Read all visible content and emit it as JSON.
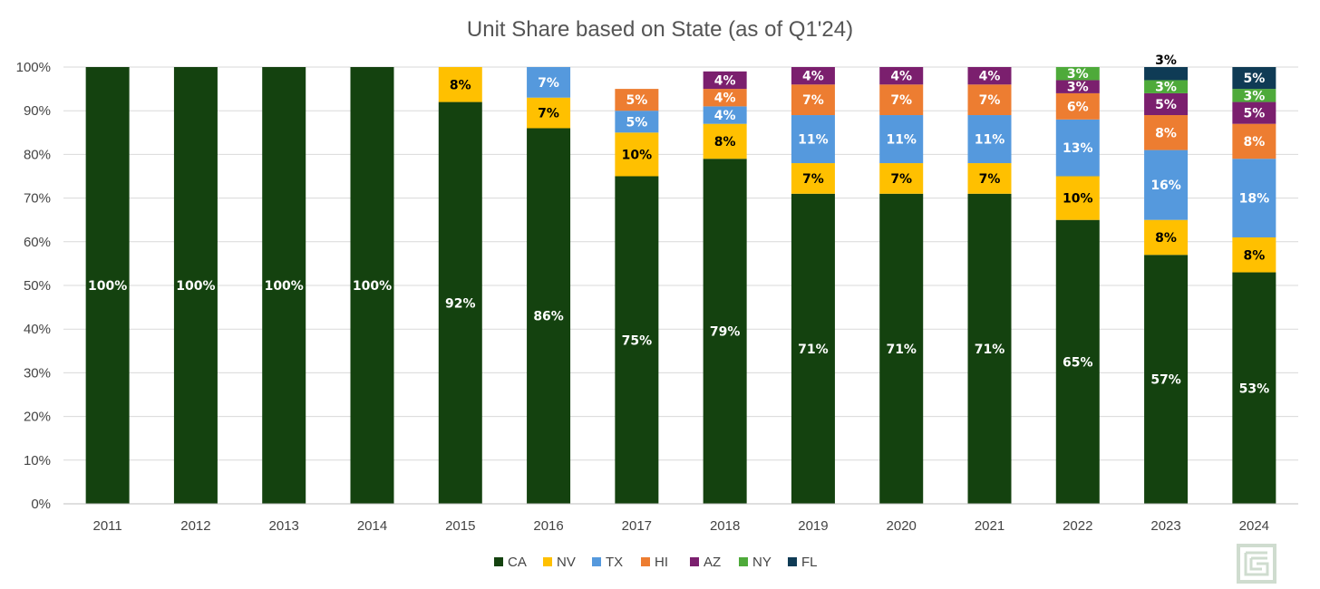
{
  "chart_data": {
    "type": "bar",
    "stacked": true,
    "percent": true,
    "title": "Unit Share based on State (as of Q1'24)",
    "xlabel": "",
    "ylabel": "",
    "ylim": [
      0,
      100
    ],
    "yticks": [
      "0%",
      "10%",
      "20%",
      "30%",
      "40%",
      "50%",
      "60%",
      "70%",
      "80%",
      "90%",
      "100%"
    ],
    "categories": [
      "2011",
      "2012",
      "2013",
      "2014",
      "2015",
      "2016",
      "2017",
      "2018",
      "2019",
      "2020",
      "2021",
      "2022",
      "2023",
      "2024"
    ],
    "legend_position": "bottom",
    "grid": true,
    "series": [
      {
        "name": "CA",
        "color": "#14420f",
        "label_color": "#ffffff",
        "values": [
          100,
          100,
          100,
          100,
          92,
          86,
          75,
          79,
          71,
          71,
          71,
          65,
          57,
          53
        ],
        "labels": [
          "100%",
          "100%",
          "100%",
          "100%",
          "92%",
          "86%",
          "75%",
          "79%",
          "71%",
          "71%",
          "71%",
          "65%",
          "57%",
          "53%"
        ]
      },
      {
        "name": "NV",
        "color": "#ffc000",
        "label_color": "#000000",
        "values": [
          0,
          0,
          0,
          0,
          8,
          7,
          10,
          8,
          7,
          7,
          7,
          10,
          8,
          8
        ],
        "labels": [
          "",
          "",
          "",
          "",
          "8%",
          "7%",
          "10%",
          "8%",
          "7%",
          "7%",
          "7%",
          "10%",
          "8%",
          "8%"
        ]
      },
      {
        "name": "TX",
        "color": "#5599dd",
        "label_color": "#ffffff",
        "values": [
          0,
          0,
          0,
          0,
          0,
          7,
          5,
          4,
          11,
          11,
          11,
          13,
          16,
          18
        ],
        "labels": [
          "",
          "",
          "",
          "",
          "",
          "7%",
          "5%",
          "4%",
          "11%",
          "11%",
          "11%",
          "13%",
          "16%",
          "18%"
        ]
      },
      {
        "name": "HI",
        "color": "#ed7d31",
        "label_color": "#ffffff",
        "values": [
          0,
          0,
          0,
          0,
          0,
          0,
          5,
          4,
          7,
          7,
          7,
          6,
          8,
          8
        ],
        "labels": [
          "",
          "",
          "",
          "",
          "",
          "",
          "5%",
          "4%",
          "7%",
          "7%",
          "7%",
          "6%",
          "8%",
          "8%"
        ]
      },
      {
        "name": "AZ",
        "color": "#7b1f6e",
        "label_color": "#ffffff",
        "values": [
          0,
          0,
          0,
          0,
          0,
          0,
          0,
          4,
          4,
          4,
          4,
          3,
          5,
          5
        ],
        "labels": [
          "",
          "",
          "",
          "",
          "",
          "",
          "",
          "4%",
          "4%",
          "4%",
          "4%",
          "3%",
          "5%",
          "5%"
        ]
      },
      {
        "name": "NY",
        "color": "#4eaa3a",
        "label_color": "#ffffff",
        "values": [
          0,
          0,
          0,
          0,
          0,
          0,
          0,
          0,
          0,
          0,
          0,
          3,
          3,
          3
        ],
        "labels": [
          "",
          "",
          "",
          "",
          "",
          "",
          "",
          "",
          "",
          "",
          "",
          "3%",
          "3%",
          "3%"
        ]
      },
      {
        "name": "FL",
        "color": "#0f3b55",
        "label_color": "#ffffff",
        "values": [
          0,
          0,
          0,
          0,
          0,
          0,
          0,
          0,
          0,
          0,
          0,
          0,
          3,
          5
        ],
        "labels": [
          "",
          "",
          "",
          "",
          "",
          "",
          "",
          "",
          "",
          "",
          "",
          "",
          "3%",
          "5%"
        ]
      }
    ]
  },
  "logo": {
    "name": "brand-logo",
    "color": "#cfdccf"
  }
}
